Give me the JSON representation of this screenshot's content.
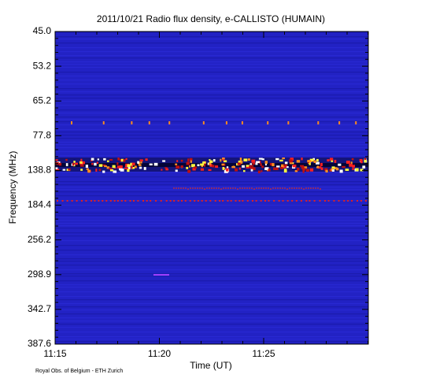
{
  "chart_data": {
    "type": "spectrogram",
    "title": "2011/10/21  Radio flux density, e-CALLISTO (HUMAIN)",
    "y_label": "Frequency (MHz)",
    "x_label": "Time (UT)",
    "footer": "Royal Obs. of Belgium - ETH Zurich",
    "y_tick_labels": [
      "45.0",
      "53.2",
      "65.2",
      "77.8",
      "138.8",
      "184.4",
      "256.2",
      "298.9",
      "342.7",
      "387.6"
    ],
    "xticks": [
      "11:15",
      "11:20",
      "11:25"
    ]
  }
}
